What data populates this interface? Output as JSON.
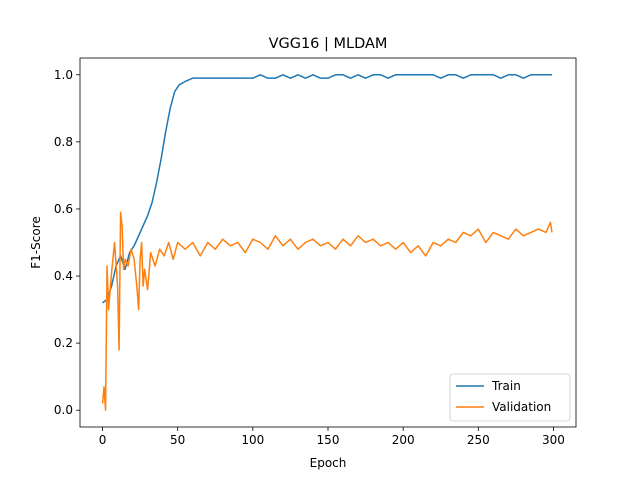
{
  "chart_data": {
    "type": "line",
    "title": "VGG16 | MLDAM",
    "xlabel": "Epoch",
    "ylabel": "F1-Score",
    "xlim": [
      -15,
      315
    ],
    "ylim": [
      -0.05,
      1.05
    ],
    "xticks": [
      0,
      50,
      100,
      150,
      200,
      250,
      300
    ],
    "yticks": [
      0.0,
      0.2,
      0.4,
      0.6,
      0.8,
      1.0
    ],
    "ytick_labels": [
      "0.0",
      "0.2",
      "0.4",
      "0.6",
      "0.8",
      "1.0"
    ],
    "grid": false,
    "legend_position": "lower-right",
    "series": [
      {
        "name": "Train",
        "color": "#1f77b4",
        "x": [
          0,
          3,
          6,
          9,
          12,
          15,
          18,
          21,
          24,
          27,
          30,
          33,
          36,
          39,
          42,
          45,
          48,
          51,
          55,
          60,
          65,
          70,
          75,
          80,
          85,
          90,
          95,
          100,
          105,
          110,
          115,
          120,
          125,
          130,
          135,
          140,
          145,
          150,
          155,
          160,
          165,
          170,
          175,
          180,
          185,
          190,
          195,
          200,
          205,
          210,
          215,
          220,
          225,
          230,
          235,
          240,
          245,
          250,
          255,
          260,
          265,
          270,
          275,
          280,
          285,
          290,
          295,
          299
        ],
        "y": [
          0.32,
          0.33,
          0.37,
          0.43,
          0.46,
          0.42,
          0.47,
          0.49,
          0.52,
          0.55,
          0.58,
          0.62,
          0.68,
          0.75,
          0.83,
          0.9,
          0.95,
          0.97,
          0.98,
          0.99,
          0.99,
          0.99,
          0.99,
          0.99,
          0.99,
          0.99,
          0.99,
          0.99,
          1.0,
          0.99,
          0.99,
          1.0,
          0.99,
          1.0,
          0.99,
          1.0,
          0.99,
          0.99,
          1.0,
          1.0,
          0.99,
          1.0,
          0.99,
          1.0,
          1.0,
          0.99,
          1.0,
          1.0,
          1.0,
          1.0,
          1.0,
          1.0,
          0.99,
          1.0,
          1.0,
          0.99,
          1.0,
          1.0,
          1.0,
          1.0,
          0.99,
          1.0,
          1.0,
          0.99,
          1.0,
          1.0,
          1.0,
          1.0
        ]
      },
      {
        "name": "Validation",
        "color": "#ff7f0e",
        "x": [
          0,
          1,
          2,
          3,
          4,
          6,
          8,
          10,
          11,
          12,
          13,
          14,
          15,
          17,
          19,
          21,
          23,
          24,
          25,
          26,
          27,
          28,
          30,
          32,
          35,
          38,
          41,
          44,
          47,
          50,
          55,
          60,
          65,
          70,
          75,
          80,
          85,
          90,
          95,
          100,
          105,
          110,
          115,
          120,
          125,
          130,
          135,
          140,
          145,
          150,
          155,
          160,
          165,
          170,
          175,
          180,
          185,
          190,
          195,
          200,
          205,
          210,
          215,
          220,
          225,
          230,
          235,
          240,
          245,
          250,
          255,
          260,
          265,
          270,
          275,
          280,
          285,
          290,
          295,
          298,
          299
        ],
        "y": [
          0.02,
          0.07,
          0.0,
          0.43,
          0.3,
          0.41,
          0.5,
          0.37,
          0.18,
          0.59,
          0.55,
          0.42,
          0.45,
          0.43,
          0.48,
          0.45,
          0.36,
          0.3,
          0.45,
          0.5,
          0.37,
          0.42,
          0.36,
          0.47,
          0.43,
          0.48,
          0.46,
          0.5,
          0.45,
          0.5,
          0.48,
          0.5,
          0.46,
          0.5,
          0.48,
          0.51,
          0.49,
          0.5,
          0.47,
          0.51,
          0.5,
          0.48,
          0.52,
          0.49,
          0.51,
          0.48,
          0.5,
          0.51,
          0.49,
          0.5,
          0.48,
          0.51,
          0.49,
          0.52,
          0.5,
          0.51,
          0.49,
          0.5,
          0.48,
          0.5,
          0.47,
          0.49,
          0.46,
          0.5,
          0.49,
          0.51,
          0.5,
          0.53,
          0.52,
          0.54,
          0.5,
          0.53,
          0.52,
          0.51,
          0.54,
          0.52,
          0.53,
          0.54,
          0.53,
          0.56,
          0.53
        ]
      }
    ]
  }
}
